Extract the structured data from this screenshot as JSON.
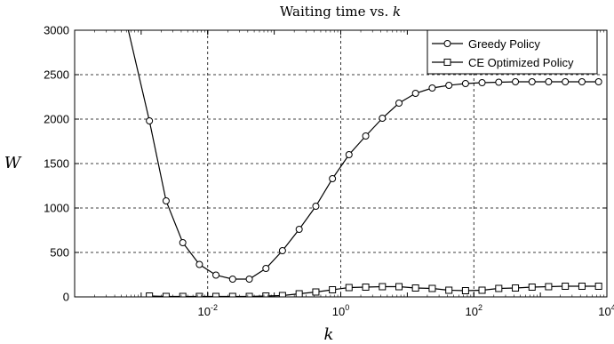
{
  "chart_data": {
    "type": "line",
    "title_prefix": "Waiting time vs. ",
    "title_var": "k",
    "xlabel": "k",
    "ylabel": "W",
    "xscale": "log",
    "xlim": [
      0.0001,
      10000
    ],
    "ylim": [
      0,
      3000
    ],
    "grid": true,
    "legend_position": "top-right",
    "yticks": [
      0,
      500,
      1000,
      1500,
      2000,
      2500,
      3000
    ],
    "ytick_labels": [
      "0",
      "500",
      "1000",
      "1500",
      "2000",
      "2500",
      "3000"
    ],
    "xticks": [
      0.01,
      1,
      100,
      10000
    ],
    "xtick_labels": [
      {
        "base": "10",
        "exp": "-2"
      },
      {
        "base": "10",
        "exp": "0"
      },
      {
        "base": "10",
        "exp": "2"
      },
      {
        "base": "10",
        "exp": "4"
      }
    ],
    "series": [
      {
        "name": "Greedy Policy",
        "marker": "circle",
        "x": [
          0.000133,
          0.00133,
          0.00237,
          0.00422,
          0.0075,
          0.0133,
          0.0237,
          0.0422,
          0.075,
          0.133,
          0.237,
          0.422,
          0.75,
          1.33,
          2.37,
          4.22,
          7.5,
          13.3,
          23.7,
          42.2,
          75,
          133,
          237,
          422,
          750,
          1330,
          2370,
          4220,
          7500
        ],
        "y": [
          5200,
          1980,
          1080,
          610,
          365,
          245,
          200,
          200,
          320,
          520,
          760,
          1020,
          1330,
          1600,
          1810,
          2010,
          2180,
          2290,
          2350,
          2380,
          2400,
          2410,
          2415,
          2420,
          2420,
          2420,
          2420,
          2420,
          2420
        ]
      },
      {
        "name": "CE Optimized Policy",
        "marker": "square",
        "x": [
          0.00133,
          0.00237,
          0.00422,
          0.0075,
          0.0133,
          0.0237,
          0.0422,
          0.075,
          0.133,
          0.237,
          0.422,
          0.75,
          1.33,
          2.37,
          4.22,
          7.5,
          13.3,
          23.7,
          42.2,
          75,
          133,
          237,
          422,
          750,
          1330,
          2370,
          4220,
          7500
        ],
        "y": [
          10,
          5,
          5,
          5,
          5,
          5,
          5,
          10,
          15,
          35,
          55,
          80,
          105,
          110,
          115,
          115,
          100,
          95,
          75,
          70,
          75,
          95,
          100,
          110,
          115,
          120,
          120,
          120
        ]
      }
    ]
  }
}
